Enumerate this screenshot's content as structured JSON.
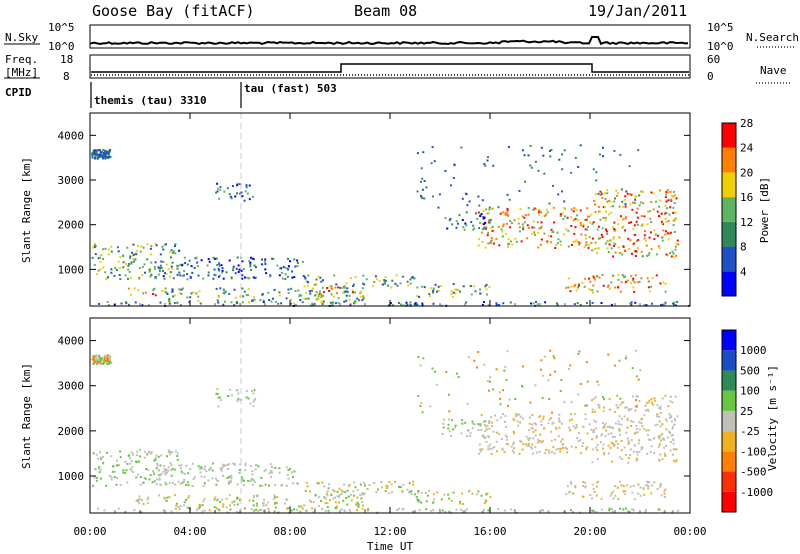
{
  "header": {
    "radar": "Goose Bay (fitACF)",
    "beam": "Beam 08",
    "date": "19/Jan/2011"
  },
  "noise_panel": {
    "left_label": "N.Sky",
    "right_label": "N.Search",
    "left_ticks": [
      "10^5",
      "10^0"
    ],
    "right_ticks": [
      "10^5",
      "10^0"
    ]
  },
  "freq_panel": {
    "left_label_1": "Freq.",
    "left_label_2": "[MHz]",
    "right_label": "Nave",
    "left_ticks": [
      "18",
      "8"
    ],
    "right_ticks": [
      "60",
      "0"
    ]
  },
  "cpid_panel": {
    "label": "CPID",
    "segments": [
      {
        "label": "themis (tau) 3310",
        "start_hour": 0
      },
      {
        "label": "tau (fast) 503",
        "start_hour": 6
      }
    ]
  },
  "chart_data": [
    {
      "type": "heatmap",
      "name": "power",
      "ylabel": "Slant Range [km]",
      "yticks": [
        "1000",
        "2000",
        "3000",
        "4000"
      ],
      "colorbar_label": "Power [dB]",
      "colorbar_ticks": [
        "4",
        "8",
        "12",
        "16",
        "20",
        "24",
        "28"
      ],
      "colors": [
        "#0000ff",
        "#2050c8",
        "#2e8b57",
        "#5fb45f",
        "#f0d000",
        "#ff8000",
        "#ff0000"
      ]
    },
    {
      "type": "heatmap",
      "name": "velocity",
      "ylabel": "Slant Range [km]",
      "yticks": [
        "1000",
        "2000",
        "3000",
        "4000"
      ],
      "colorbar_label": "Velocity [m s⁻¹]",
      "colorbar_ticks": [
        "1000",
        "500",
        "100",
        "25",
        "-25",
        "-100",
        "-500",
        "-1000"
      ],
      "colors": [
        "#0000ff",
        "#1a4cc8",
        "#2e8b57",
        "#66c840",
        "#c0c0b8",
        "#f0b020",
        "#ff8000",
        "#ff3000",
        "#ff0000"
      ]
    }
  ],
  "x_axis": {
    "ticks": [
      "00:00",
      "04:00",
      "08:00",
      "12:00",
      "16:00",
      "20:00",
      "00:00"
    ],
    "label": "Time UT"
  }
}
